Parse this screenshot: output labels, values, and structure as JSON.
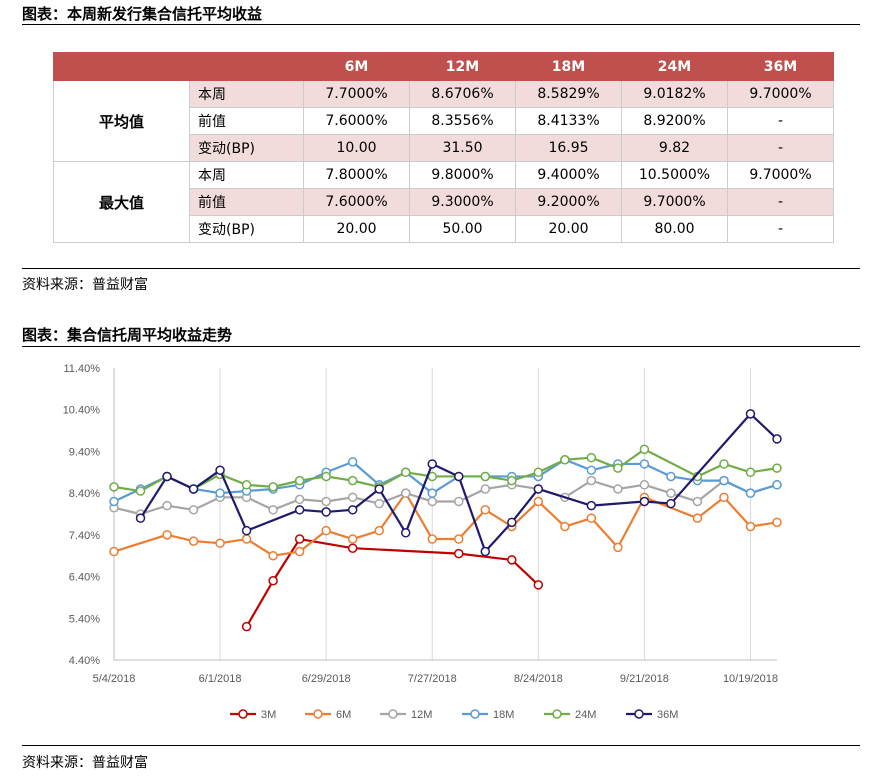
{
  "table_title": "图表：本周新发行集合信托平均收益",
  "table": {
    "headers": [
      "",
      "",
      "6M",
      "12M",
      "18M",
      "24M",
      "36M"
    ],
    "groups": [
      {
        "name": "平均值",
        "rows": [
          {
            "label": "本周",
            "values": [
              "7.7000%",
              "8.6706%",
              "8.5829%",
              "9.0182%",
              "9.7000%"
            ]
          },
          {
            "label": "前值",
            "values": [
              "7.6000%",
              "8.3556%",
              "8.4133%",
              "8.9200%",
              "-"
            ]
          },
          {
            "label": "变动(BP)",
            "values": [
              "10.00",
              "31.50",
              "16.95",
              "9.82",
              "-"
            ]
          }
        ]
      },
      {
        "name": "最大值",
        "rows": [
          {
            "label": "本周",
            "values": [
              "7.8000%",
              "9.8000%",
              "9.4000%",
              "10.5000%",
              "9.7000%"
            ]
          },
          {
            "label": "前值",
            "values": [
              "7.6000%",
              "9.3000%",
              "9.2000%",
              "9.7000%",
              "-"
            ]
          },
          {
            "label": "变动(BP)",
            "values": [
              "20.00",
              "50.00",
              "20.00",
              "80.00",
              "-"
            ]
          }
        ]
      }
    ]
  },
  "source1": "资料来源：普益财富",
  "chart_title": "图表：集合信托周平均收益走势",
  "source2": "资料来源：普益财富",
  "chart_data": {
    "type": "line",
    "x": [
      "5/4/2018",
      "5/11/2018",
      "5/18/2018",
      "5/25/2018",
      "6/1/2018",
      "6/8/2018",
      "6/15/2018",
      "6/22/2018",
      "6/29/2018",
      "7/6/2018",
      "7/13/2018",
      "7/20/2018",
      "7/27/2018",
      "8/3/2018",
      "8/10/2018",
      "8/17/2018",
      "8/24/2018",
      "8/31/2018",
      "9/7/2018",
      "9/14/2018",
      "9/21/2018",
      "9/28/2018",
      "10/5/2018",
      "10/12/2018",
      "10/19/2018",
      "10/26/2018"
    ],
    "x_ticks": [
      "5/4/2018",
      "6/1/2018",
      "6/29/2018",
      "7/27/2018",
      "8/24/2018",
      "9/21/2018",
      "10/19/2018"
    ],
    "ylim": [
      4.4,
      11.4
    ],
    "y_ticks": [
      "4.40%",
      "5.40%",
      "6.40%",
      "7.40%",
      "8.40%",
      "9.40%",
      "10.40%",
      "11.40%"
    ],
    "series": [
      {
        "name": "3M",
        "color": "#c00000",
        "values": [
          null,
          null,
          null,
          null,
          null,
          5.2,
          6.3,
          7.3,
          null,
          7.08,
          null,
          null,
          null,
          6.95,
          null,
          6.8,
          6.2,
          null,
          null,
          null,
          null,
          null,
          null,
          null,
          null,
          null
        ]
      },
      {
        "name": "6M",
        "color": "#ed7d31",
        "values": [
          7.0,
          null,
          7.4,
          7.25,
          7.2,
          7.3,
          6.9,
          7.0,
          7.5,
          7.3,
          7.5,
          8.4,
          7.3,
          7.3,
          8.0,
          7.6,
          8.2,
          7.6,
          7.8,
          7.1,
          8.3,
          null,
          7.8,
          8.3,
          7.6,
          7.7
        ]
      },
      {
        "name": "12M",
        "color": "#a5a5a5",
        "values": [
          8.05,
          7.9,
          8.1,
          8.0,
          8.3,
          8.3,
          8.0,
          8.25,
          8.2,
          8.3,
          8.15,
          8.4,
          8.2,
          8.2,
          8.5,
          8.6,
          8.5,
          8.3,
          8.7,
          8.5,
          8.6,
          8.4,
          8.2,
          8.7,
          8.4,
          8.6
        ]
      },
      {
        "name": "18M",
        "color": "#5b9bd5",
        "values": [
          8.2,
          8.5,
          8.8,
          8.5,
          8.4,
          8.45,
          8.5,
          8.6,
          8.9,
          9.15,
          8.6,
          8.9,
          8.4,
          8.8,
          8.8,
          8.8,
          8.8,
          9.2,
          8.95,
          9.1,
          9.1,
          8.8,
          8.7,
          8.7,
          8.4,
          8.6
        ]
      },
      {
        "name": "24M",
        "color": "#70ad47",
        "values": [
          8.55,
          8.45,
          8.8,
          8.5,
          8.85,
          8.6,
          8.55,
          8.7,
          8.8,
          8.7,
          8.55,
          8.9,
          8.8,
          8.8,
          8.8,
          8.7,
          8.9,
          9.2,
          9.25,
          9.0,
          9.45,
          null,
          8.8,
          9.1,
          8.9,
          9.0
        ]
      },
      {
        "name": "36M",
        "color": "#1f1a6e",
        "values": [
          null,
          7.8,
          8.8,
          8.5,
          8.95,
          7.5,
          null,
          8.0,
          7.95,
          8.0,
          8.5,
          7.45,
          9.1,
          8.8,
          7.0,
          7.7,
          8.5,
          null,
          8.1,
          null,
          8.2,
          8.15,
          null,
          null,
          10.3,
          9.7
        ]
      }
    ],
    "legend_position": "bottom",
    "grid": "vertical"
  }
}
